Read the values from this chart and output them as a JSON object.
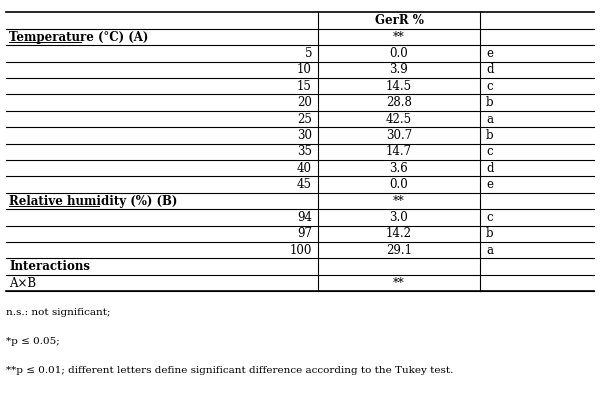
{
  "title": "",
  "col_header": [
    "",
    "GerR %",
    ""
  ],
  "rows": [
    {
      "type": "section_header",
      "col0": "Temperature (°C) (A)",
      "col1": "**",
      "col2": ""
    },
    {
      "type": "data",
      "col0": "5",
      "col1": "0.0",
      "col2": "e"
    },
    {
      "type": "data",
      "col0": "10",
      "col1": "3.9",
      "col2": "d"
    },
    {
      "type": "data",
      "col0": "15",
      "col1": "14.5",
      "col2": "c"
    },
    {
      "type": "data",
      "col0": "20",
      "col1": "28.8",
      "col2": "b"
    },
    {
      "type": "data",
      "col0": "25",
      "col1": "42.5",
      "col2": "a"
    },
    {
      "type": "data",
      "col0": "30",
      "col1": "30.7",
      "col2": "b"
    },
    {
      "type": "data",
      "col0": "35",
      "col1": "14.7",
      "col2": "c"
    },
    {
      "type": "data",
      "col0": "40",
      "col1": "3.6",
      "col2": "d"
    },
    {
      "type": "data",
      "col0": "45",
      "col1": "0.0",
      "col2": "e"
    },
    {
      "type": "section_header",
      "col0": "Relative humidity (%) (B)",
      "col1": "**",
      "col2": ""
    },
    {
      "type": "data",
      "col0": "94",
      "col1": "3.0",
      "col2": "c"
    },
    {
      "type": "data",
      "col0": "97",
      "col1": "14.2",
      "col2": "b"
    },
    {
      "type": "data",
      "col0": "100",
      "col1": "29.1",
      "col2": "a"
    },
    {
      "type": "interactions_header",
      "col0": "Interactions",
      "col1": "",
      "col2": ""
    },
    {
      "type": "data",
      "col0": "A×B",
      "col1": "**",
      "col2": ""
    }
  ],
  "footnotes": [
    "n.s.: not significant;",
    "*p ≤ 0.05;",
    "**p ≤ 0.01; different letters define significant difference according to the Tukey test."
  ],
  "bg_color": "#ffffff",
  "text_color": "#000000",
  "font_size": 8.5,
  "header_font_size": 8.5,
  "footnote_font_size": 7.5
}
